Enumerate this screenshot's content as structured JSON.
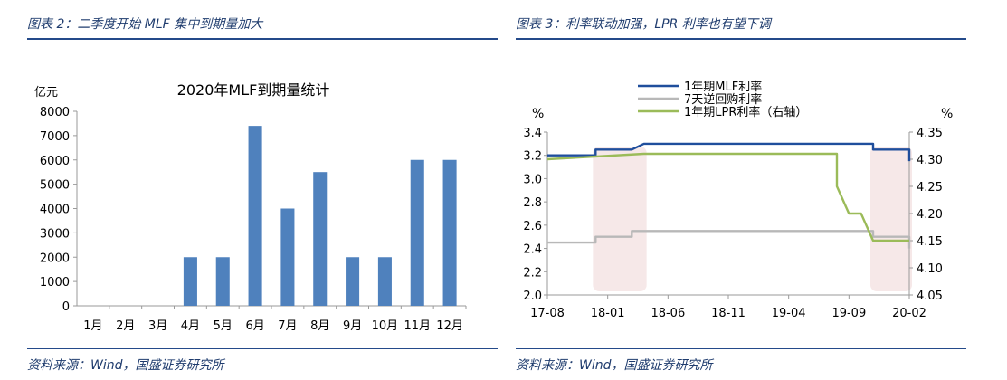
{
  "left": {
    "caption": "图表 2：二季度开始 MLF 集中到期量加大",
    "source": "资料来源：Wind，国盛证券研究所"
  },
  "right": {
    "caption": "图表 3：利率联动加强，LPR 利率也有望下调",
    "source": "资料来源：Wind，国盛证券研究所"
  },
  "chart_data": [
    {
      "type": "bar",
      "title": "2020年MLF到期量统计",
      "ylabel": "亿元",
      "categories": [
        "1月",
        "2月",
        "3月",
        "4月",
        "5月",
        "6月",
        "7月",
        "8月",
        "9月",
        "10月",
        "11月",
        "12月"
      ],
      "values": [
        0,
        0,
        0,
        2000,
        2000,
        7400,
        4000,
        5500,
        2000,
        2000,
        6000,
        6000
      ],
      "ylim": [
        0,
        8000
      ],
      "yticks": [
        "0",
        "1000",
        "2000",
        "3000",
        "4000",
        "5000",
        "6000",
        "7000",
        "8000"
      ],
      "color": "#4f81bd",
      "grid": false
    },
    {
      "type": "line",
      "x_ticks": [
        "17-08",
        "18-01",
        "18-06",
        "18-11",
        "19-04",
        "19-09",
        "20-02"
      ],
      "y_left_label": "%",
      "y_right_label": "%",
      "ylim_left": [
        2.0,
        3.4
      ],
      "ylim_right": [
        4.05,
        4.35
      ],
      "yticks_left": [
        "2.0",
        "2.2",
        "2.4",
        "2.6",
        "2.8",
        "3.0",
        "3.2",
        "3.4"
      ],
      "yticks_right": [
        "4.05",
        "4.10",
        "4.15",
        "4.20",
        "4.25",
        "4.30",
        "4.35"
      ],
      "legend_position": "top",
      "series": [
        {
          "name": "1年期MLF利率",
          "axis": "left",
          "color": "#1f4e9c",
          "points": [
            [
              "2017-08",
              3.2
            ],
            [
              "2017-12",
              3.2
            ],
            [
              "2017-12",
              3.25
            ],
            [
              "2018-03",
              3.25
            ],
            [
              "2018-04",
              3.3
            ],
            [
              "2019-11",
              3.3
            ],
            [
              "2019-11",
              3.25
            ],
            [
              "2020-02",
              3.25
            ],
            [
              "2020-02",
              3.15
            ]
          ]
        },
        {
          "name": "7天逆回购利率",
          "axis": "left",
          "color": "#b8b8b8",
          "points": [
            [
              "2017-08",
              2.45
            ],
            [
              "2017-12",
              2.45
            ],
            [
              "2017-12",
              2.5
            ],
            [
              "2018-03",
              2.5
            ],
            [
              "2018-03",
              2.55
            ],
            [
              "2019-11",
              2.55
            ],
            [
              "2019-11",
              2.5
            ],
            [
              "2020-02",
              2.5
            ],
            [
              "2020-02",
              2.4
            ]
          ]
        },
        {
          "name": "1年期LPR利率（右轴）",
          "axis": "right",
          "color": "#9bbb59",
          "points": [
            [
              "2017-08",
              4.3
            ],
            [
              "2018-04",
              4.31
            ],
            [
              "2019-08",
              4.31
            ],
            [
              "2019-08",
              4.25
            ],
            [
              "2019-09",
              4.2
            ],
            [
              "2019-10",
              4.2
            ],
            [
              "2019-11",
              4.15
            ],
            [
              "2020-02",
              4.15
            ]
          ]
        }
      ],
      "shaded_ranges": [
        [
          "2017-12",
          "2018-04"
        ],
        [
          "2019-11",
          "2020-02"
        ]
      ]
    }
  ]
}
